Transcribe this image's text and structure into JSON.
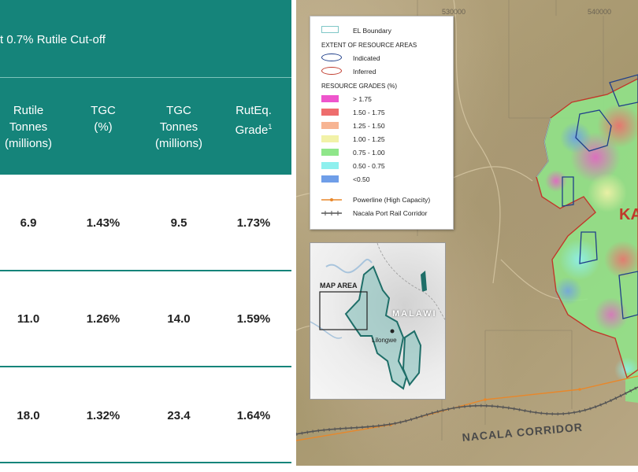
{
  "table": {
    "cutoff_title": "t 0.7% Rutile Cut-off",
    "columns": [
      {
        "line1": "Rutile",
        "line2": "Tonnes",
        "line3": "(millions)"
      },
      {
        "line1": "TGC",
        "line2": "(%)",
        "line3": ""
      },
      {
        "line1": "TGC",
        "line2": "Tonnes",
        "line3": "(millions)"
      },
      {
        "line1": "RutEq.",
        "line2": "Grade",
        "line3": "",
        "sup": "1"
      }
    ],
    "rows": [
      {
        "rutile_tonnes": "6.9",
        "tgc_pct": "1.43%",
        "tgc_tonnes": "9.5",
        "ruteq_grade": "1.73%"
      },
      {
        "rutile_tonnes": "11.0",
        "tgc_pct": "1.26%",
        "tgc_tonnes": "14.0",
        "ruteq_grade": "1.59%"
      },
      {
        "rutile_tonnes": "18.0",
        "tgc_pct": "1.32%",
        "tgc_tonnes": "23.4",
        "ruteq_grade": "1.64%"
      }
    ]
  },
  "map": {
    "coords": [
      "530000",
      "540000"
    ],
    "legend": {
      "el_boundary": "EL Boundary",
      "extent_title": "EXTENT OF RESOURCE AREAS",
      "indicated": "Indicated",
      "inferred": "Inferred",
      "grades_title": "RESOURCE GRADES (%)",
      "grades": [
        {
          "label": "> 1.75",
          "color": "#ee55cc"
        },
        {
          "label": "1.50 - 1.75",
          "color": "#ee6d6d"
        },
        {
          "label": "1.25 - 1.50",
          "color": "#f7b493"
        },
        {
          "label": "1.00 - 1.25",
          "color": "#f2f2a8"
        },
        {
          "label": "0.75 - 1.00",
          "color": "#8fe68a"
        },
        {
          "label": "0.50 - 0.75",
          "color": "#8ef0ee"
        },
        {
          "label": "<0.50",
          "color": "#6f9ee8"
        }
      ],
      "powerline": "Powerline (High Capacity)",
      "rail": "Nacala Port Rail Corridor",
      "colors": {
        "indicated": "#1f3f8a",
        "inferred": "#c0392b",
        "powerline": "#e8872a",
        "rail": "#555555",
        "el_boundary": "#7fc7c7"
      }
    },
    "inset": {
      "map_area": "MAP AREA",
      "country": "MALAWI",
      "city": "Lilongwe"
    },
    "corridor_label": "NACALA CORRIDOR",
    "place_label": "KA"
  }
}
